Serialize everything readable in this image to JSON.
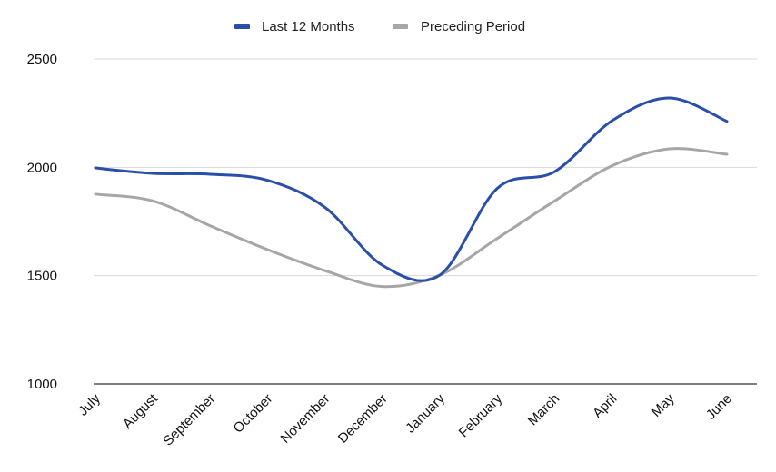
{
  "chart_data": {
    "type": "line",
    "title": "",
    "xlabel": "",
    "ylabel": "",
    "categories": [
      "July",
      "August",
      "September",
      "October",
      "November",
      "December",
      "January",
      "February",
      "March",
      "April",
      "May",
      "June"
    ],
    "series": [
      {
        "name": "Last 12 Months",
        "color": "#2b4fa8",
        "values": [
          1997,
          1972,
          1968,
          1940,
          1815,
          1548,
          1503,
          1903,
          1980,
          2215,
          2320,
          2212
        ]
      },
      {
        "name": "Preceding Period",
        "color": "#a6a6a6",
        "values": [
          1876,
          1845,
          1730,
          1620,
          1523,
          1450,
          1503,
          1672,
          1845,
          2007,
          2085,
          2060
        ]
      }
    ],
    "ylim": [
      1000,
      2500
    ],
    "yticks": [
      1000,
      1500,
      2000,
      2500
    ],
    "ytick_labels": [
      "1000",
      "1500",
      "2000",
      "2500"
    ],
    "grid": true,
    "legend_position": "top-center",
    "smooth": true
  }
}
